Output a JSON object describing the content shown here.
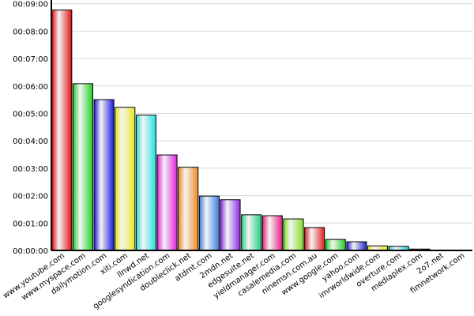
{
  "chart_data": {
    "type": "bar",
    "categories": [
      "www.youtube.com",
      "www.myspace.com",
      "dailymotion.com",
      "xiti.com",
      "llnwd.net",
      "googlesyndication.com",
      "doubleclick.net",
      "atdmt.com",
      "2mdn.net",
      "edgesuite.net",
      "yieldmanager.com",
      "casalemedia.com",
      "ninemsn.com.au",
      "www.google.com",
      "yahoo.com",
      "imrworldwide.com",
      "overture.com",
      "mediaplex.com",
      "2o7.net",
      "fimnetwork.com"
    ],
    "values": [
      526,
      365,
      330,
      313,
      296,
      209,
      182,
      119,
      111,
      78,
      76,
      69,
      50,
      24,
      19,
      10,
      9,
      3,
      0.5,
      0.3
    ],
    "colors": [
      "#e01010",
      "#20d020",
      "#1818e0",
      "#e8e820",
      "#20e0e0",
      "#e020e0",
      "#f08a20",
      "#3a7ae0",
      "#8a2ae0",
      "#20d080",
      "#e02080",
      "#80e020",
      "#e02020",
      "#20d020",
      "#2020d0",
      "#e8e820",
      "#20d0d0",
      "#202020",
      "#808080",
      "#808080"
    ],
    "ylim": [
      0,
      548
    ],
    "yticks": [
      {
        "value": 0,
        "label": "00:00:00"
      },
      {
        "value": 60,
        "label": "00:01:00"
      },
      {
        "value": 120,
        "label": "00:02:00"
      },
      {
        "value": 180,
        "label": "00:03:00"
      },
      {
        "value": 240,
        "label": "00:04:00"
      },
      {
        "value": 300,
        "label": "00:05:00"
      },
      {
        "value": 360,
        "label": "00:06:00"
      },
      {
        "value": 420,
        "label": "00:07:00"
      },
      {
        "value": 480,
        "label": "00:08:00"
      },
      {
        "value": 540,
        "label": "00:09:00"
      }
    ],
    "grid": true
  }
}
